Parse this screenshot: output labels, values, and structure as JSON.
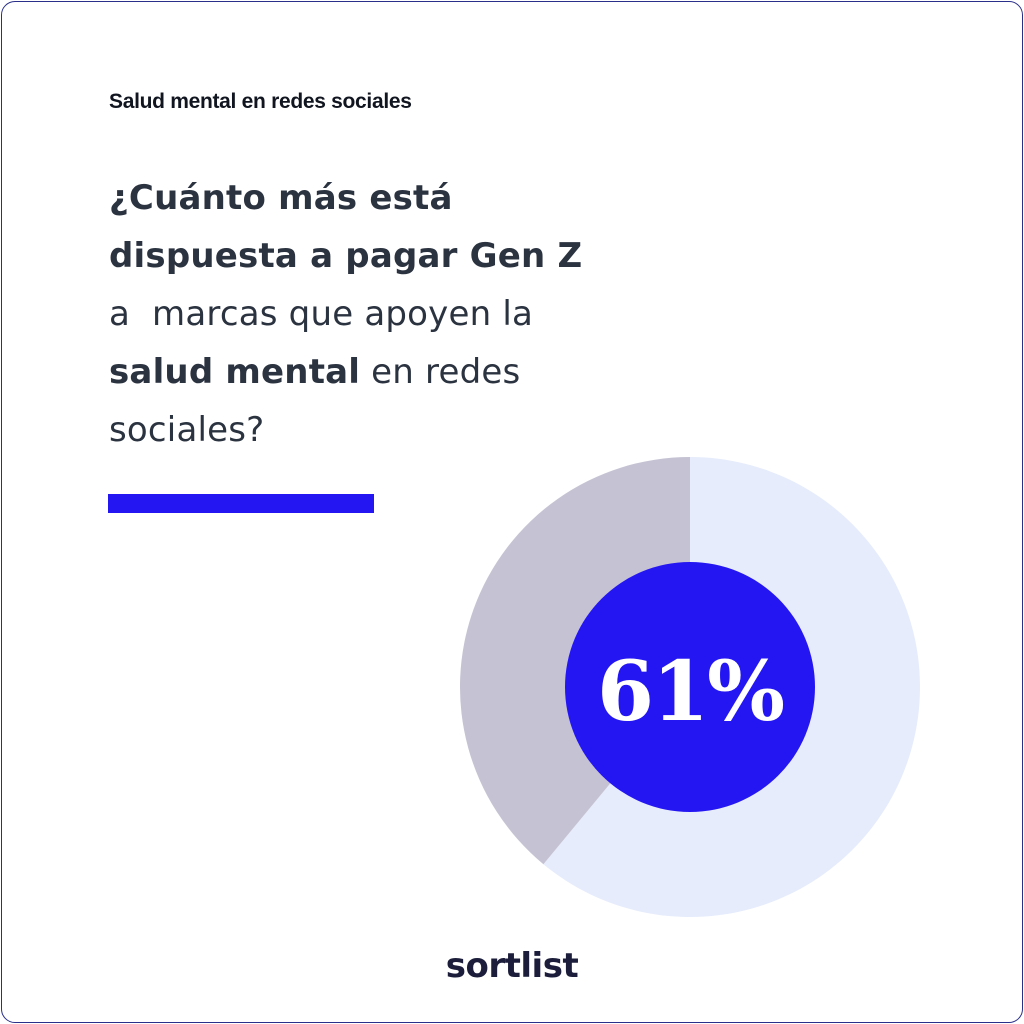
{
  "header": {
    "eyebrow": "Salud mental en redes sociales"
  },
  "headline": {
    "line1": "¿Cuánto más está",
    "line2": "dispuesta a pagar Gen Z",
    "line3": "a  marcas que apoyen la",
    "line4_bold": "salud mental",
    "line4_light": " en redes",
    "line5": "sociales?"
  },
  "brand": "sortlist",
  "colors": {
    "accent": "#2416f2",
    "donut_main": "#e6ecfb",
    "donut_rest": "#c5c2d3",
    "center_text": "#ffffff"
  },
  "chart_data": {
    "type": "pie",
    "title": "",
    "center_label": "61%",
    "slices": [
      {
        "value": 61,
        "color": "#e6ecfb"
      },
      {
        "value": 39,
        "color": "#c5c2d3"
      }
    ],
    "unit": "%"
  }
}
